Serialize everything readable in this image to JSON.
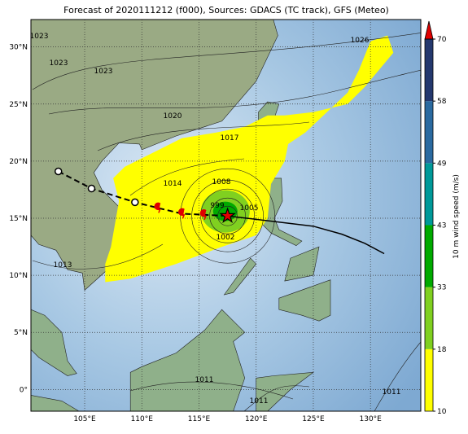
{
  "title": "Forecast of 2020111212 (f000), Sources: GDACS (TC track), GFS (Meteo)",
  "map": {
    "xlim": [
      100.3,
      134.4
    ],
    "ylim": [
      -1.9,
      32.4
    ],
    "xticks": [
      {
        "value": 105,
        "label": "105°E"
      },
      {
        "value": 110,
        "label": "110°E"
      },
      {
        "value": 115,
        "label": "115°E"
      },
      {
        "value": 120,
        "label": "120°E"
      },
      {
        "value": 125,
        "label": "125°E"
      },
      {
        "value": 130,
        "label": "130°E"
      }
    ],
    "yticks": [
      {
        "value": 0,
        "label": "0°"
      },
      {
        "value": 5,
        "label": "5°N"
      },
      {
        "value": 10,
        "label": "10°N"
      },
      {
        "value": 15,
        "label": "15°N"
      },
      {
        "value": 20,
        "label": "20°N"
      },
      {
        "value": 25,
        "label": "25°N"
      },
      {
        "value": 30,
        "label": "30°N"
      }
    ],
    "isobar_labels": [
      "1026",
      "1023",
      "1023",
      "1023",
      "1020",
      "1017",
      "1014",
      "1008",
      "999",
      "1002",
      "1005",
      "1013",
      "1011",
      "1011",
      "1011"
    ],
    "track": {
      "past_lon": [
        102.7,
        105.6,
        109.4
      ],
      "past_lat": [
        19.1,
        17.6,
        16.4
      ],
      "recent_lon": [
        111.4,
        113.5,
        115.4
      ],
      "recent_lat": [
        15.9,
        15.4,
        15.3
      ],
      "current_lon": 117.5,
      "current_lat": 15.2,
      "forecast_lon": [
        117.5,
        120,
        122.5,
        125,
        127.5,
        129.5,
        131.2
      ],
      "forecast_lat": [
        15.2,
        14.9,
        14.6,
        14.3,
        13.6,
        12.8,
        11.9
      ]
    }
  },
  "colorbar": {
    "label": "10 m wind speed (m/s)",
    "ticks": [
      10,
      18,
      33,
      43,
      49,
      58,
      70
    ],
    "colors": [
      "#ffff00",
      "#80d020",
      "#00aa00",
      "#009999",
      "#2a6aa0",
      "#24386e"
    ],
    "extend_color": "#e00000"
  }
}
